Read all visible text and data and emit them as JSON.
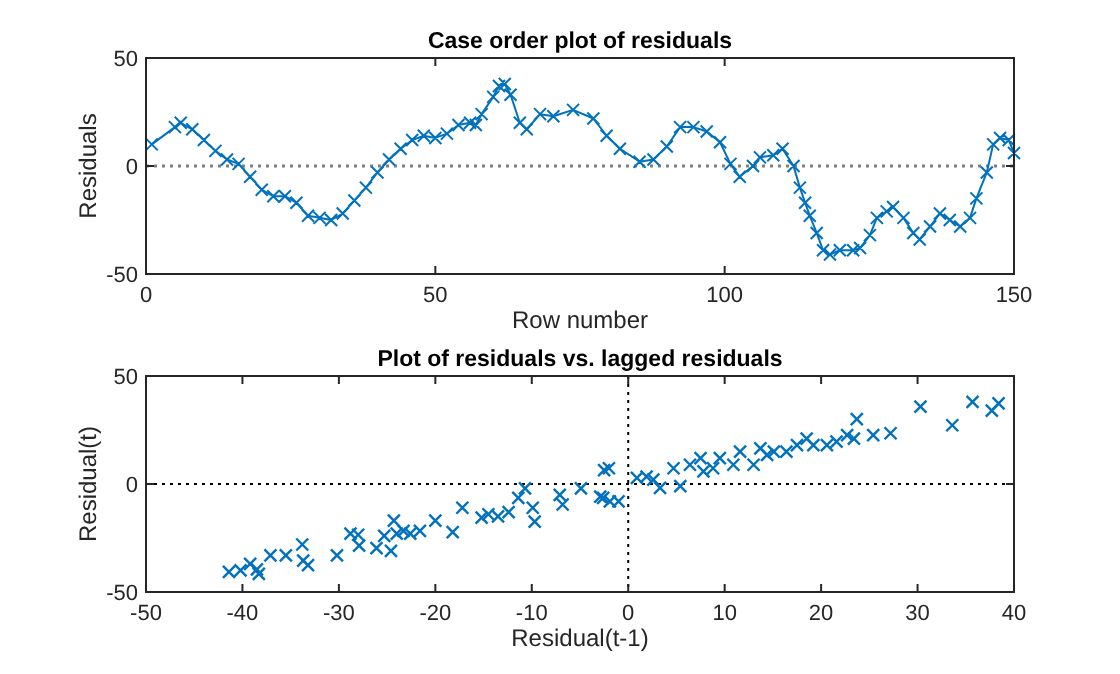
{
  "chart_data": [
    {
      "type": "line",
      "title": "Case order plot of residuals",
      "xlabel": "Row number",
      "ylabel": "Residuals",
      "xlim": [
        0,
        150
      ],
      "xticks": [
        0,
        50,
        100,
        150
      ],
      "ylim": [
        -50,
        50
      ],
      "yticks": [
        -50,
        0,
        50
      ],
      "marker": "cross",
      "line_style": "solid",
      "x": [
        1,
        5,
        6,
        8,
        10,
        12,
        14,
        16,
        18,
        20,
        22,
        24,
        26,
        28,
        30,
        32,
        34,
        36,
        38,
        40,
        42,
        44,
        46,
        48,
        50,
        52,
        54,
        56,
        57,
        58,
        60,
        61,
        62,
        63,
        64.6,
        65.8,
        68.1,
        70.4,
        73.8,
        77.3,
        79.6,
        81.9,
        85.3,
        87.7,
        90,
        92.3,
        94.6,
        96.9,
        99.2,
        101,
        102.6,
        104.9,
        106.1,
        108.4,
        110,
        111.9,
        113,
        113.9,
        114.7,
        115.9,
        117,
        118.2,
        119.9,
        122.2,
        123.4,
        125.1,
        126.3,
        128,
        129.1,
        130.9,
        132.6,
        133.7,
        135.5,
        137.2,
        138.9,
        140.7,
        142.4,
        143.5,
        145.3,
        146.4,
        147.6,
        149.1,
        150
      ],
      "series": [
        {
          "color": "#0072bd",
          "values": [
            10,
            18,
            20,
            17,
            12,
            7,
            3,
            1,
            -5,
            -11,
            -14,
            -14,
            -17,
            -23,
            -24,
            -25,
            -22,
            -16,
            -10,
            -3,
            3,
            8,
            12,
            14,
            13,
            15,
            19,
            20,
            19,
            24,
            32,
            37,
            38,
            33,
            20,
            17,
            24,
            23,
            26,
            22,
            14,
            8,
            2,
            3,
            9,
            18,
            18,
            16,
            11,
            1,
            -5,
            0,
            4,
            5,
            8,
            0,
            -10,
            -17,
            -23,
            -31,
            -39,
            -41,
            -39,
            -39,
            -38,
            -32,
            -24,
            -21,
            -19,
            -24,
            -31,
            -34,
            -28,
            -22,
            -25,
            -28,
            -24,
            -15,
            -3,
            10,
            13,
            12,
            6
          ]
        }
      ],
      "ref_lines": [
        {
          "axis": "y",
          "value": 0,
          "color": "#808080",
          "line_style": "dotted"
        }
      ]
    },
    {
      "type": "scatter",
      "title": "Plot of residuals vs. lagged residuals",
      "xlabel": "Residual(t-1)",
      "ylabel": "Residual(t)",
      "xlim": [
        -50,
        40
      ],
      "xticks": [
        -50,
        -40,
        -30,
        -20,
        -10,
        0,
        10,
        20,
        30,
        40
      ],
      "ylim": [
        -50,
        50
      ],
      "yticks": [
        -50,
        0,
        50
      ],
      "marker": "cross",
      "x": [
        -41.4,
        -40.2,
        -39.2,
        -38.5,
        -38.3,
        -37.1,
        -35.5,
        -33.8,
        -33.7,
        -33.2,
        -30.2,
        -28.8,
        -28,
        -27.9,
        -26.1,
        -25.3,
        -24.6,
        -24.3,
        -24,
        -23.3,
        -22.6,
        -21.6,
        -20,
        -18.2,
        -17.2,
        -15.2,
        -14.5,
        -13.5,
        -12.4,
        -11.4,
        -10.7,
        -9.9,
        -9.7,
        -7.1,
        -6.8,
        -4.9,
        -2.5,
        -2.9,
        -1.9,
        -2.6,
        -1,
        -2,
        0.9,
        1.9,
        2.6,
        3.3,
        4.7,
        5.4,
        6.4,
        7.5,
        7.8,
        8.8,
        9.5,
        10.9,
        11.6,
        13,
        13.7,
        14.4,
        15.1,
        16.4,
        17.5,
        18.5,
        19.2,
        20.6,
        21.6,
        22.7,
        23.7,
        23.4,
        25.4,
        27.2,
        30.3,
        33.6,
        35.7,
        37.7,
        38.4
      ],
      "series": [
        {
          "color": "#0072bd",
          "values": [
            -40.7,
            -40,
            -37,
            -39.5,
            -41.6,
            -33,
            -33,
            -28,
            -35.5,
            -37.6,
            -33,
            -23,
            -23.5,
            -28.5,
            -29.7,
            -24,
            -31,
            -17,
            -23,
            -21.7,
            -23,
            -21.7,
            -17,
            -22.3,
            -11,
            -15.6,
            -14,
            -15,
            -13,
            -6.4,
            -2,
            -11,
            -17.4,
            -5,
            -9.5,
            -2,
            6.4,
            -5.8,
            -8,
            -6.4,
            -8,
            7.3,
            2.8,
            3.4,
            2,
            -1.8,
            7.3,
            -1,
            8.9,
            12,
            5.8,
            7.3,
            12,
            8.9,
            15,
            8.9,
            16.5,
            13.5,
            15,
            15,
            18,
            21,
            18,
            18,
            19.6,
            22.6,
            30,
            21,
            22.6,
            23.5,
            35.8,
            27.2,
            38,
            34,
            37.3
          ]
        }
      ],
      "ref_lines": [
        {
          "axis": "y",
          "value": 0,
          "color": "#000000",
          "line_style": "dotted"
        },
        {
          "axis": "x",
          "value": 0,
          "color": "#000000",
          "line_style": "dotted"
        }
      ]
    }
  ]
}
